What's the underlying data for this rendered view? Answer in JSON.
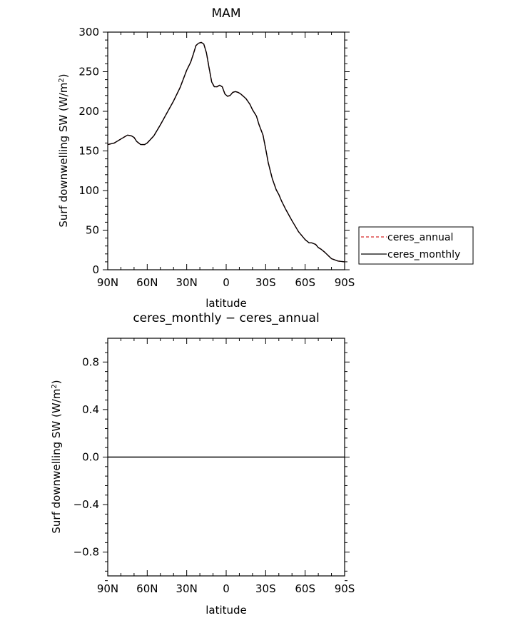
{
  "chart_data": [
    {
      "type": "line",
      "title": "MAM",
      "xlabel": "latitude",
      "ylabel": "Surf downwelling SW (W/m²)",
      "ylabel_parts": {
        "main": "Surf downwelling SW (W/m",
        "sup": "2",
        "end": ")"
      },
      "xlim": [
        90,
        -90
      ],
      "ylim": [
        0,
        300
      ],
      "x_ticks": [
        {
          "value": 90,
          "label": "90N"
        },
        {
          "value": 60,
          "label": "60N"
        },
        {
          "value": 30,
          "label": "30N"
        },
        {
          "value": 0,
          "label": "0"
        },
        {
          "value": -30,
          "label": "30S"
        },
        {
          "value": -60,
          "label": "60S"
        },
        {
          "value": -90,
          "label": "90S"
        }
      ],
      "y_ticks": [
        {
          "value": 0,
          "label": "0"
        },
        {
          "value": 50,
          "label": "50"
        },
        {
          "value": 100,
          "label": "100"
        },
        {
          "value": 150,
          "label": "150"
        },
        {
          "value": 200,
          "label": "200"
        },
        {
          "value": 250,
          "label": "250"
        },
        {
          "value": 300,
          "label": "300"
        }
      ],
      "legend_position": "right",
      "series": [
        {
          "name": "ceres_annual",
          "color": "#d62728",
          "dash": "dashed",
          "x": [
            90,
            85,
            80,
            75,
            72,
            70,
            68,
            65,
            62,
            60,
            55,
            50,
            45,
            40,
            35,
            30,
            27,
            25,
            23,
            21,
            19,
            17,
            15,
            13,
            11,
            9,
            7,
            5,
            3,
            1,
            -1,
            -3,
            -5,
            -7,
            -9,
            -11,
            -13,
            -15,
            -18,
            -20,
            -23,
            -25,
            -28,
            -30,
            -32,
            -35,
            -38,
            -40,
            -42,
            -45,
            -50,
            -55,
            -60,
            -63,
            -65,
            -68,
            -70,
            -72,
            -75,
            -80,
            -85,
            -90
          ],
          "y": [
            158,
            160,
            165,
            170,
            169,
            167,
            162,
            158,
            158,
            160,
            169,
            183,
            198,
            213,
            230,
            252,
            262,
            272,
            283,
            286,
            287,
            285,
            274,
            255,
            237,
            231,
            231,
            233,
            231,
            222,
            219,
            220,
            224,
            225,
            224,
            222,
            219,
            216,
            209,
            202,
            194,
            183,
            170,
            153,
            135,
            115,
            101,
            95,
            87,
            77,
            62,
            48,
            38,
            34,
            34,
            32,
            28,
            26,
            22,
            14,
            11,
            10
          ]
        },
        {
          "name": "ceres_monthly",
          "color": "#000000",
          "dash": "solid",
          "x": [
            90,
            85,
            80,
            75,
            72,
            70,
            68,
            65,
            62,
            60,
            55,
            50,
            45,
            40,
            35,
            30,
            27,
            25,
            23,
            21,
            19,
            17,
            15,
            13,
            11,
            9,
            7,
            5,
            3,
            1,
            -1,
            -3,
            -5,
            -7,
            -9,
            -11,
            -13,
            -15,
            -18,
            -20,
            -23,
            -25,
            -28,
            -30,
            -32,
            -35,
            -38,
            -40,
            -42,
            -45,
            -50,
            -55,
            -60,
            -63,
            -65,
            -68,
            -70,
            -72,
            -75,
            -80,
            -85,
            -90
          ],
          "y": [
            158,
            160,
            165,
            170,
            169,
            167,
            162,
            158,
            158,
            160,
            169,
            183,
            198,
            213,
            230,
            252,
            262,
            272,
            283,
            286,
            287,
            285,
            274,
            255,
            237,
            231,
            231,
            233,
            231,
            222,
            219,
            220,
            224,
            225,
            224,
            222,
            219,
            216,
            209,
            202,
            194,
            183,
            170,
            153,
            135,
            115,
            101,
            95,
            87,
            77,
            62,
            48,
            38,
            34,
            34,
            32,
            28,
            26,
            22,
            14,
            11,
            10
          ]
        }
      ]
    },
    {
      "type": "line",
      "title": "ceres_monthly − ceres_annual",
      "xlabel": "latitude",
      "ylabel": "Surf downwelling SW (W/m²)",
      "ylabel_parts": {
        "main": "Surf downwelling SW (W/m",
        "sup": "2",
        "end": ")"
      },
      "xlim": [
        90,
        -90
      ],
      "ylim": [
        -1,
        1
      ],
      "x_ticks": [
        {
          "value": 90,
          "label": "90N"
        },
        {
          "value": 60,
          "label": "60N"
        },
        {
          "value": 30,
          "label": "30N"
        },
        {
          "value": 0,
          "label": "0"
        },
        {
          "value": -30,
          "label": "30S"
        },
        {
          "value": -60,
          "label": "60S"
        },
        {
          "value": -90,
          "label": "90S"
        }
      ],
      "y_ticks": [
        {
          "value": -0.8,
          "label": "−0.8"
        },
        {
          "value": -0.4,
          "label": "−0.4"
        },
        {
          "value": 0,
          "label": "0.0"
        },
        {
          "value": 0.4,
          "label": "0.4"
        },
        {
          "value": 0.8,
          "label": "0.8"
        }
      ],
      "series": [
        {
          "color": "#000000",
          "dash": "solid",
          "x": [
            90,
            -90
          ],
          "y": [
            0,
            0
          ]
        }
      ]
    }
  ]
}
